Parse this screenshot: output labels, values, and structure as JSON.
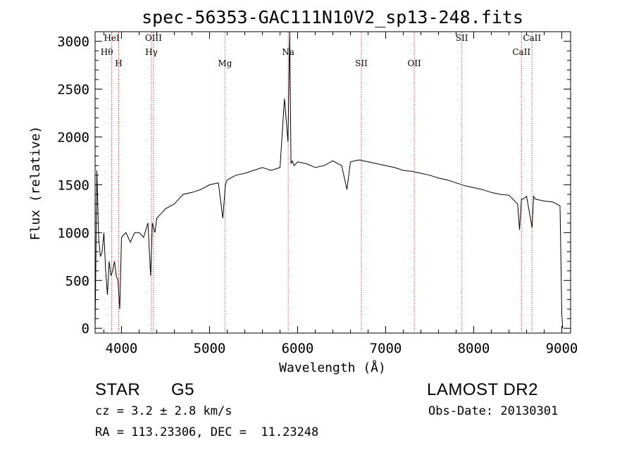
{
  "chart_data": {
    "type": "line",
    "title": "spec-56353-GAC111N10V2_sp13-248.fits",
    "xlabel": "Wavelength (Å)",
    "ylabel": "Flux (relative)",
    "xlim": [
      3700,
      9100
    ],
    "ylim": [
      -50,
      3100
    ],
    "xticks": [
      4000,
      5000,
      6000,
      7000,
      8000,
      9000
    ],
    "yticks": [
      0,
      500,
      1000,
      1500,
      2000,
      2500,
      3000
    ],
    "series": [
      {
        "x": [
          3700,
          3720,
          3740,
          3760,
          3780,
          3800,
          3820,
          3840,
          3860,
          3880,
          3900,
          3920,
          3940,
          3960,
          3980,
          4000,
          4050,
          4100,
          4150,
          4200,
          4250,
          4300,
          4330,
          4350,
          4380,
          4400,
          4450,
          4500,
          4600,
          4700,
          4800,
          4900,
          5000,
          5100,
          5150,
          5180,
          5200,
          5300,
          5400,
          5500,
          5600,
          5700,
          5800,
          5850,
          5890,
          5910,
          5925,
          5940,
          5960,
          6000,
          6100,
          6200,
          6300,
          6400,
          6500,
          6560,
          6600,
          6700,
          6800,
          6900,
          7000,
          7100,
          7200,
          7300,
          7400,
          7500,
          7600,
          7700,
          7800,
          7900,
          8000,
          8100,
          8200,
          8300,
          8400,
          8498,
          8520,
          8542,
          8560,
          8600,
          8662,
          8680,
          8700,
          8800,
          8900,
          8980,
          9000,
          9010
        ],
        "y": [
          0,
          1650,
          950,
          750,
          800,
          1000,
          600,
          350,
          700,
          550,
          600,
          700,
          550,
          500,
          200,
          950,
          1000,
          900,
          1000,
          1000,
          950,
          1100,
          550,
          1100,
          1000,
          1150,
          1200,
          1250,
          1300,
          1400,
          1420,
          1450,
          1500,
          1520,
          1150,
          1500,
          1550,
          1600,
          1620,
          1650,
          1680,
          1650,
          1680,
          2400,
          1950,
          3100,
          1720,
          1750,
          1700,
          1740,
          1720,
          1680,
          1700,
          1750,
          1700,
          1450,
          1740,
          1760,
          1740,
          1720,
          1700,
          1680,
          1650,
          1640,
          1620,
          1600,
          1570,
          1550,
          1520,
          1490,
          1470,
          1450,
          1420,
          1400,
          1390,
          1300,
          1030,
          1350,
          1350,
          1380,
          1050,
          1380,
          1350,
          1330,
          1320,
          1280,
          150,
          0
        ]
      }
    ],
    "lines": [
      {
        "x": 3889,
        "label": "HeI",
        "label2": "Hθ"
      },
      {
        "x": 3968,
        "label": "H"
      },
      {
        "x": 4340,
        "label": "Hγ"
      },
      {
        "x": 4363,
        "label": "OIII"
      },
      {
        "x": 5175,
        "label": "Mg"
      },
      {
        "x": 5893,
        "label": "Na"
      },
      {
        "x": 6724,
        "label": "SII"
      },
      {
        "x": 7325,
        "label": "OII"
      },
      {
        "x": 7865,
        "label": "SII"
      },
      {
        "x": 8542,
        "label": "CaII"
      },
      {
        "x": 8662,
        "label": "CaII"
      }
    ],
    "colors": {
      "spectrum": "#000000",
      "line_markers": "#cc0000"
    }
  },
  "info": {
    "class_label": "STAR",
    "subclass": "G5",
    "survey": "LAMOST DR2",
    "cz": "cz = 3.2 ± 2.8 km/s",
    "obs_date": "Obs-Date: 20130301",
    "coords": "RA = 113.23306, DEC =  11.23248"
  }
}
